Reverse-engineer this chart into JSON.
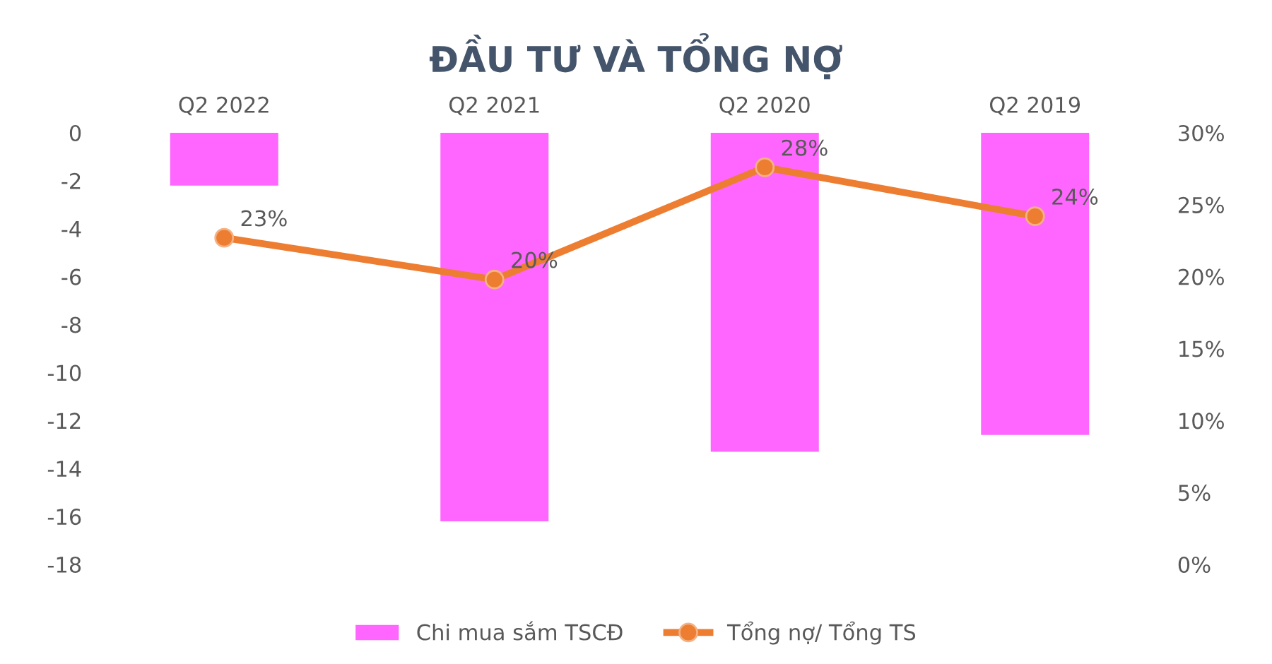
{
  "chart_data": {
    "type": "bar",
    "title": "ĐẦU TƯ VÀ TỔNG NỢ",
    "categories": [
      "Q2 2022",
      "Q2 2021",
      "Q2 2020",
      "Q2 2019"
    ],
    "series": [
      {
        "name": "Chi mua sắm TSCĐ",
        "color": "#ff66ff",
        "values": [
          -2.2,
          -16.2,
          -13.3,
          -12.6
        ]
      },
      {
        "name": "Tổng nợ/ Tổng TS",
        "type": "line",
        "axis": "y2",
        "color": "#ed7d31",
        "values": [
          22.7,
          19.8,
          27.6,
          24.2
        ],
        "value_labels": [
          "23%",
          "20%",
          "28%",
          "24%"
        ],
        "marker": "circle",
        "line_style": "solid"
      }
    ],
    "ylim": [
      -18,
      0
    ],
    "yticks": [
      -18,
      -16,
      -14,
      -12,
      -10,
      -8,
      -6,
      -4,
      -2,
      0
    ],
    "y2lim": [
      0,
      30
    ],
    "y2ticks": [
      {
        "value": 0,
        "label": "0%"
      },
      {
        "value": 5,
        "label": "5%"
      },
      {
        "value": 10,
        "label": "10%"
      },
      {
        "value": 15,
        "label": "15%"
      },
      {
        "value": 20,
        "label": "20%"
      },
      {
        "value": 25,
        "label": "25%"
      },
      {
        "value": 30,
        "label": "30%"
      }
    ],
    "grid": false,
    "legend": "bottom"
  }
}
